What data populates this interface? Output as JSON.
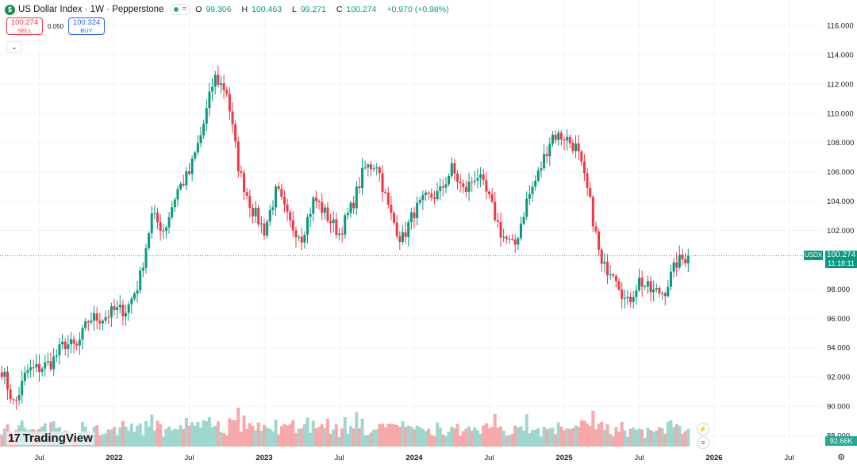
{
  "header": {
    "symbol_icon": "$",
    "title": "US Dollar Index · 1W · Pepperstone",
    "status_icon": "market-open-dot",
    "ohlc": {
      "o_label": "O",
      "o": "99.306",
      "h_label": "H",
      "h": "100.463",
      "l_label": "L",
      "l": "99.271",
      "c_label": "C",
      "c": "100.274",
      "change": "+0.970 (+0.98%)"
    }
  },
  "trade": {
    "sell_price": "100.274",
    "sell_label": "SELL",
    "spread": "0.050",
    "buy_price": "100.324",
    "buy_label": "BUY"
  },
  "collapse_icon": "chevron-down-icon",
  "logo": {
    "text": "TradingView",
    "mark": "17"
  },
  "price_axis": {
    "labels": [
      "116.000",
      "114.000",
      "112.000",
      "110.000",
      "108.000",
      "106.000",
      "104.000",
      "102.000",
      "98.000",
      "96.000",
      "94.000",
      "92.000",
      "90.000",
      "88.000"
    ],
    "symbol_tag": "USDX",
    "last_price": "100.274",
    "countdown": "11:18:11",
    "volume_tag": "92.66K"
  },
  "time_axis": {
    "labels": [
      "Jul",
      "2022",
      "Jul",
      "2023",
      "Jul",
      "2024",
      "Jul",
      "2025",
      "Jul",
      "2026",
      "Jul"
    ]
  },
  "colors": {
    "up": "#089981",
    "down": "#f23645",
    "vol_up": "#9ed7ce",
    "vol_down": "#f7a9a9",
    "grid": "#f0f3fa"
  },
  "chart_data": {
    "type": "candlestick",
    "title": "US Dollar Index · 1W · Pepperstone",
    "ylim": [
      88,
      117
    ],
    "last_price": 100.274,
    "anchors": [
      [
        "2021-04",
        92.5
      ],
      [
        "2021-05",
        90.0
      ],
      [
        "2021-06",
        92.4
      ],
      [
        "2021-07",
        92.6
      ],
      [
        "2021-08",
        93.0
      ],
      [
        "2021-09",
        94.3
      ],
      [
        "2021-10",
        94.0
      ],
      [
        "2021-11",
        96.0
      ],
      [
        "2021-12",
        96.0
      ],
      [
        "2022-01",
        96.5
      ],
      [
        "2022-02",
        96.6
      ],
      [
        "2022-03",
        98.5
      ],
      [
        "2022-04",
        103.0
      ],
      [
        "2022-05",
        102.0
      ],
      [
        "2022-06",
        104.7
      ],
      [
        "2022-07",
        105.9
      ],
      [
        "2022-08",
        108.7
      ],
      [
        "2022-09",
        112.5
      ],
      [
        "2022-10",
        111.5
      ],
      [
        "2022-11",
        106.0
      ],
      [
        "2022-12",
        103.5
      ],
      [
        "2023-01",
        102.0
      ],
      [
        "2023-02",
        104.8
      ],
      [
        "2023-03",
        102.5
      ],
      [
        "2023-04",
        101.6
      ],
      [
        "2023-05",
        104.2
      ],
      [
        "2023-06",
        103.0
      ],
      [
        "2023-07",
        101.8
      ],
      [
        "2023-08",
        103.6
      ],
      [
        "2023-09",
        106.2
      ],
      [
        "2023-10",
        106.6
      ],
      [
        "2023-11",
        103.3
      ],
      [
        "2023-12",
        101.3
      ],
      [
        "2024-01",
        103.3
      ],
      [
        "2024-02",
        104.2
      ],
      [
        "2024-03",
        104.5
      ],
      [
        "2024-04",
        106.2
      ],
      [
        "2024-05",
        104.6
      ],
      [
        "2024-06",
        105.9
      ],
      [
        "2024-07",
        104.1
      ],
      [
        "2024-08",
        101.7
      ],
      [
        "2024-09",
        100.8
      ],
      [
        "2024-10",
        104.0
      ],
      [
        "2024-11",
        106.0
      ],
      [
        "2024-12",
        108.5
      ],
      [
        "2025-01",
        108.4
      ],
      [
        "2025-02",
        107.6
      ],
      [
        "2025-03",
        104.2
      ],
      [
        "2025-04",
        99.5
      ],
      [
        "2025-05",
        99.3
      ],
      [
        "2025-06",
        96.9
      ],
      [
        "2025-07",
        98.6
      ],
      [
        "2025-08",
        97.8
      ],
      [
        "2025-09",
        97.8
      ],
      [
        "2025-10",
        99.8
      ],
      [
        "2025-11",
        100.274
      ]
    ]
  }
}
